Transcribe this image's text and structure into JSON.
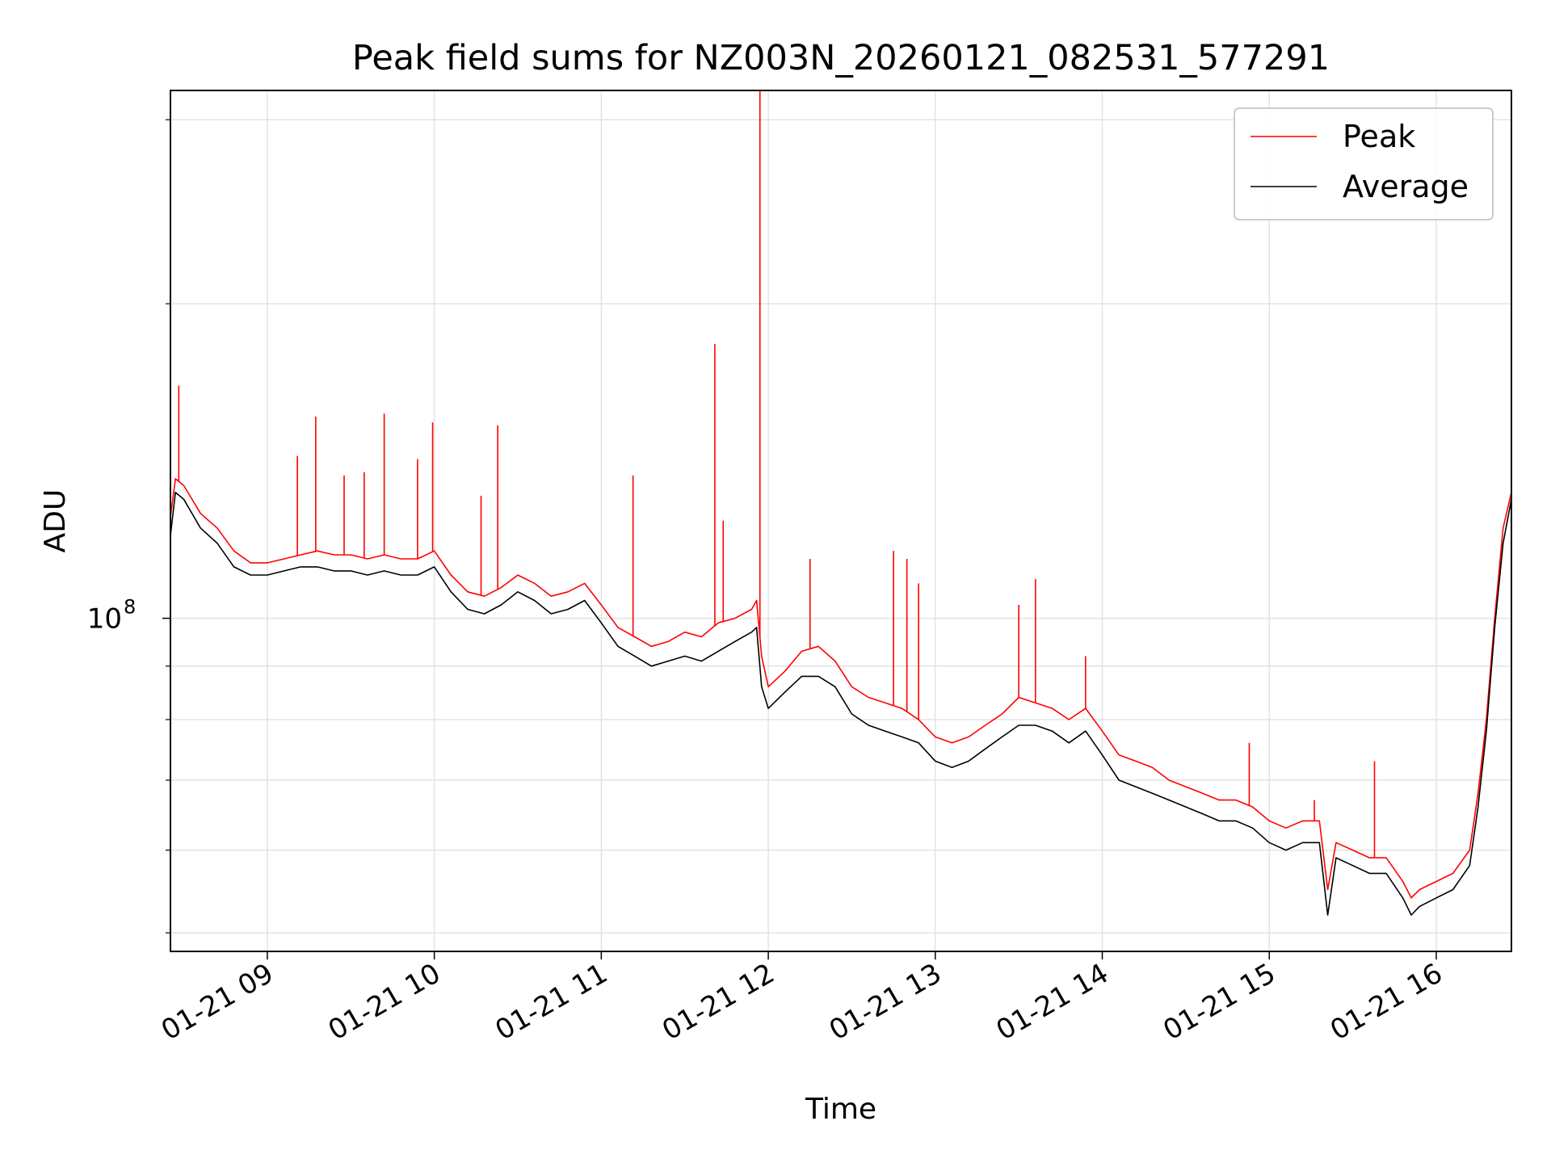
{
  "chart_data": {
    "type": "line",
    "title": "Peak field sums for NZ003N_20260121_082531_577291",
    "xlabel": "Time",
    "ylabel": "ADU",
    "y_scale": "log",
    "grid": true,
    "legend_position": "top-right",
    "x_tick_labels": [
      "01-21 09",
      "01-21 10",
      "01-21 11",
      "01-21 12",
      "01-21 13",
      "01-21 14",
      "01-21 15",
      "01-21 16"
    ],
    "x_ticks_hours": [
      9,
      10,
      11,
      12,
      13,
      14,
      15,
      16
    ],
    "xlim_hours": [
      8.42,
      16.45
    ],
    "ylim": [
      48000000,
      320000000
    ],
    "y_major_tick": {
      "value": 100000000,
      "base": "10",
      "exponent": "8"
    },
    "y_minor_ticks": [
      50000000,
      60000000,
      70000000,
      80000000,
      90000000,
      200000000,
      300000000
    ],
    "series": [
      {
        "name": "Peak",
        "color": "#ff0000",
        "x_hours": [
          8.42,
          8.45,
          8.5,
          8.6,
          8.7,
          8.8,
          8.9,
          9.0,
          9.1,
          9.2,
          9.3,
          9.4,
          9.5,
          9.6,
          9.7,
          9.8,
          9.9,
          10.0,
          10.1,
          10.2,
          10.3,
          10.4,
          10.5,
          10.6,
          10.7,
          10.8,
          10.9,
          11.0,
          11.1,
          11.2,
          11.3,
          11.4,
          11.5,
          11.6,
          11.7,
          11.8,
          11.9,
          11.93,
          11.96,
          12.0,
          12.1,
          12.2,
          12.3,
          12.4,
          12.5,
          12.6,
          12.7,
          12.8,
          12.9,
          13.0,
          13.1,
          13.2,
          13.3,
          13.4,
          13.5,
          13.6,
          13.7,
          13.8,
          13.9,
          14.0,
          14.1,
          14.2,
          14.3,
          14.4,
          14.5,
          14.6,
          14.7,
          14.8,
          14.9,
          15.0,
          15.1,
          15.2,
          15.3,
          15.35,
          15.4,
          15.5,
          15.6,
          15.7,
          15.8,
          15.85,
          15.9,
          16.0,
          16.1,
          16.2,
          16.25,
          16.3,
          16.35,
          16.4,
          16.45
        ],
        "values": [
          125000000,
          136000000,
          134000000,
          126000000,
          122000000,
          116000000,
          113000000,
          113000000,
          114000000,
          115000000,
          116000000,
          115000000,
          115000000,
          114000000,
          115000000,
          114000000,
          114000000,
          116000000,
          110000000,
          106000000,
          105000000,
          107000000,
          110000000,
          108000000,
          105000000,
          106000000,
          108000000,
          103000000,
          98000000,
          96000000,
          94000000,
          95000000,
          97000000,
          96000000,
          99000000,
          100000000,
          102000000,
          104000000,
          92000000,
          86000000,
          89000000,
          93000000,
          94000000,
          91000000,
          86000000,
          84000000,
          83000000,
          82000000,
          80000000,
          77000000,
          76000000,
          77000000,
          79000000,
          81000000,
          84000000,
          83000000,
          82000000,
          80000000,
          82000000,
          78000000,
          74000000,
          73000000,
          72000000,
          70000000,
          69000000,
          68000000,
          67000000,
          67000000,
          66000000,
          64000000,
          63000000,
          64000000,
          64000000,
          55000000,
          61000000,
          60000000,
          59000000,
          59000000,
          56000000,
          54000000,
          55000000,
          56000000,
          57000000,
          60000000,
          68000000,
          80000000,
          100000000,
          122000000,
          132000000
        ],
        "spikes": [
          {
            "x_hours": 8.47,
            "value": 167000000
          },
          {
            "x_hours": 9.18,
            "value": 143000000
          },
          {
            "x_hours": 9.29,
            "value": 156000000
          },
          {
            "x_hours": 9.46,
            "value": 137000000
          },
          {
            "x_hours": 9.58,
            "value": 138000000
          },
          {
            "x_hours": 9.7,
            "value": 157000000
          },
          {
            "x_hours": 9.9,
            "value": 142000000
          },
          {
            "x_hours": 9.99,
            "value": 154000000
          },
          {
            "x_hours": 10.28,
            "value": 131000000
          },
          {
            "x_hours": 10.38,
            "value": 153000000
          },
          {
            "x_hours": 11.19,
            "value": 137000000
          },
          {
            "x_hours": 11.68,
            "value": 183000000
          },
          {
            "x_hours": 11.73,
            "value": 124000000
          },
          {
            "x_hours": 11.95,
            "value": 320000000
          },
          {
            "x_hours": 12.25,
            "value": 114000000
          },
          {
            "x_hours": 12.75,
            "value": 116000000
          },
          {
            "x_hours": 12.83,
            "value": 114000000
          },
          {
            "x_hours": 12.9,
            "value": 108000000
          },
          {
            "x_hours": 13.5,
            "value": 103000000
          },
          {
            "x_hours": 13.6,
            "value": 109000000
          },
          {
            "x_hours": 13.9,
            "value": 92000000
          },
          {
            "x_hours": 14.88,
            "value": 76000000
          },
          {
            "x_hours": 15.27,
            "value": 67000000
          },
          {
            "x_hours": 15.63,
            "value": 73000000
          }
        ]
      },
      {
        "name": "Average",
        "color": "#000000",
        "x_hours": [
          8.42,
          8.45,
          8.5,
          8.6,
          8.7,
          8.8,
          8.9,
          9.0,
          9.1,
          9.2,
          9.3,
          9.4,
          9.5,
          9.6,
          9.7,
          9.8,
          9.9,
          10.0,
          10.1,
          10.2,
          10.3,
          10.4,
          10.5,
          10.6,
          10.7,
          10.8,
          10.9,
          11.0,
          11.1,
          11.2,
          11.3,
          11.4,
          11.5,
          11.6,
          11.7,
          11.8,
          11.9,
          11.93,
          11.96,
          12.0,
          12.1,
          12.2,
          12.3,
          12.4,
          12.5,
          12.6,
          12.7,
          12.8,
          12.9,
          13.0,
          13.1,
          13.2,
          13.3,
          13.4,
          13.5,
          13.6,
          13.7,
          13.8,
          13.9,
          14.0,
          14.1,
          14.2,
          14.3,
          14.4,
          14.5,
          14.6,
          14.7,
          14.8,
          14.9,
          15.0,
          15.1,
          15.2,
          15.3,
          15.35,
          15.4,
          15.5,
          15.6,
          15.7,
          15.8,
          15.85,
          15.9,
          16.0,
          16.1,
          16.2,
          16.25,
          16.3,
          16.35,
          16.4,
          16.45
        ],
        "values": [
          120000000,
          132000000,
          130000000,
          122000000,
          118000000,
          112000000,
          110000000,
          110000000,
          111000000,
          112000000,
          112000000,
          111000000,
          111000000,
          110000000,
          111000000,
          110000000,
          110000000,
          112000000,
          106000000,
          102000000,
          101000000,
          103000000,
          106000000,
          104000000,
          101000000,
          102000000,
          104000000,
          99000000,
          94000000,
          92000000,
          90000000,
          91000000,
          92000000,
          91000000,
          93000000,
          95000000,
          97000000,
          98000000,
          86000000,
          82000000,
          85000000,
          88000000,
          88000000,
          86000000,
          81000000,
          79000000,
          78000000,
          77000000,
          76000000,
          73000000,
          72000000,
          73000000,
          75000000,
          77000000,
          79000000,
          79000000,
          78000000,
          76000000,
          78000000,
          74000000,
          70000000,
          69000000,
          68000000,
          67000000,
          66000000,
          65000000,
          64000000,
          64000000,
          63000000,
          61000000,
          60000000,
          61000000,
          61000000,
          52000000,
          59000000,
          58000000,
          57000000,
          57000000,
          54000000,
          52000000,
          53000000,
          54000000,
          55000000,
          58000000,
          66000000,
          78000000,
          98000000,
          118000000,
          130000000
        ]
      }
    ]
  }
}
